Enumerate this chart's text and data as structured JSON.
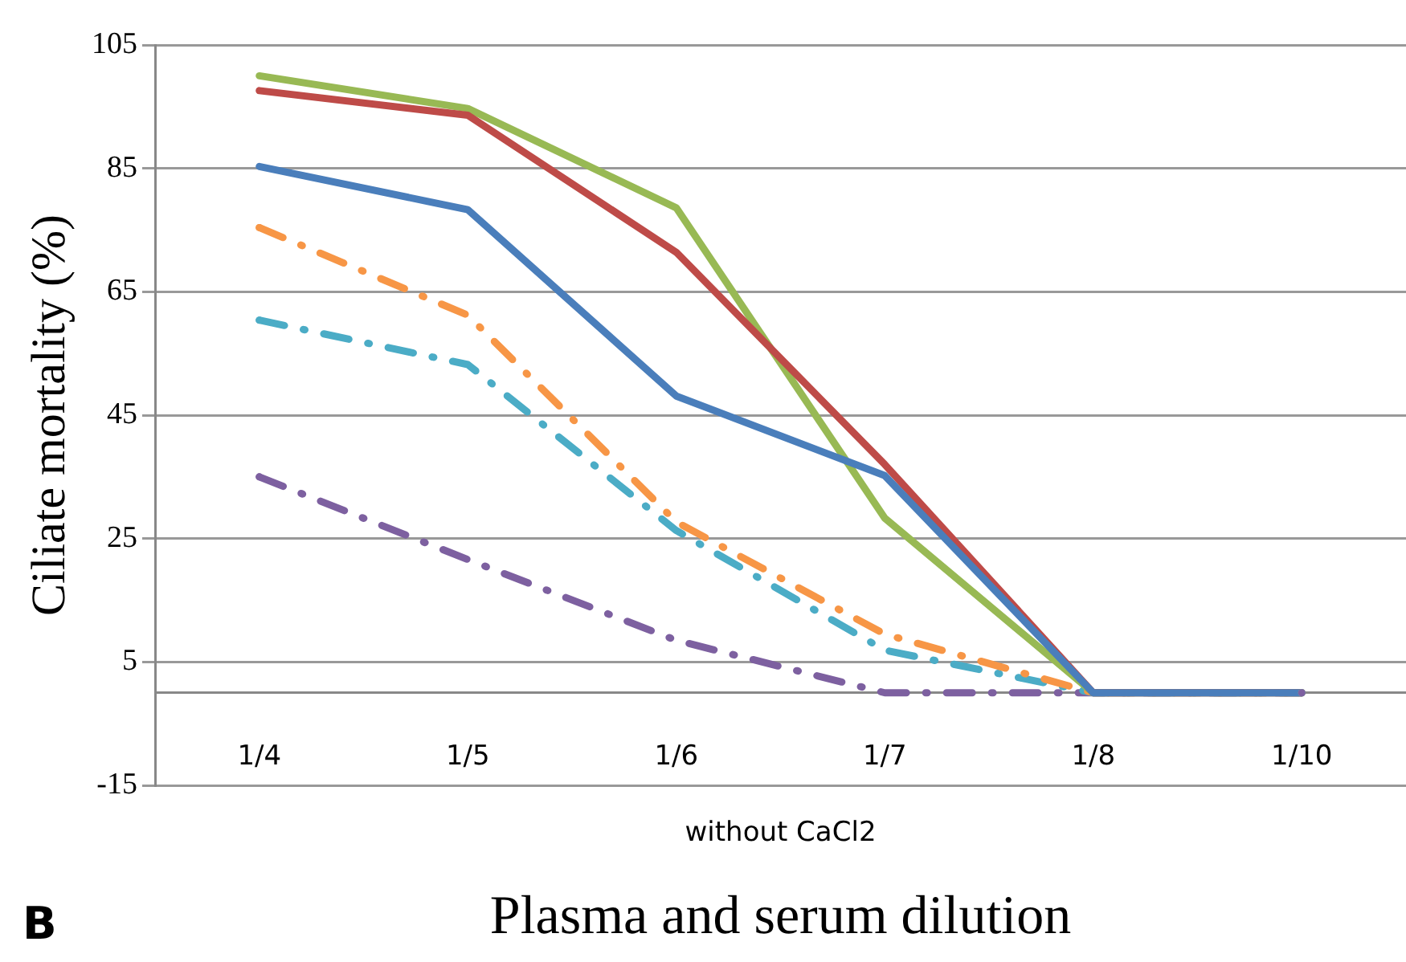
{
  "chart_data": {
    "type": "line",
    "xlabel": "Plasma and serum dilution",
    "ylabel": "Ciliate mortality (%)",
    "categories": [
      "1/4",
      "1/5",
      "1/6",
      "1/7",
      "1/8",
      "1/10"
    ],
    "series": [
      {
        "color": "#4a7ebb",
        "line_style": "solid",
        "values": [
          85.3,
          78.3,
          48.1,
          35.2,
          0,
          0
        ]
      },
      {
        "color": "#be4b48",
        "line_style": "solid",
        "values": [
          97.6,
          93.6,
          71.4,
          37,
          0,
          0
        ]
      },
      {
        "color": "#98b954",
        "line_style": "solid",
        "values": [
          100,
          94.7,
          78.6,
          28.3,
          0,
          0
        ]
      },
      {
        "color": "#f79646",
        "line_style": "dashdot",
        "values": [
          75.4,
          61.2,
          27.7,
          9.5,
          0,
          0
        ]
      },
      {
        "color": "#4bacc6",
        "line_style": "dashdot",
        "values": [
          60.4,
          53.2,
          26.3,
          6.9,
          0,
          0
        ]
      },
      {
        "color": "#7d60a0",
        "line_style": "dashdot",
        "values": [
          35,
          21.6,
          8.5,
          0,
          0,
          0
        ]
      }
    ],
    "ylim": [
      -15,
      105
    ],
    "yticks": [
      -15,
      5,
      25,
      45,
      65,
      85,
      105
    ],
    "grid": "y",
    "legend": false,
    "marker": "none",
    "annotations": [
      "without CaCl2",
      "B"
    ]
  }
}
